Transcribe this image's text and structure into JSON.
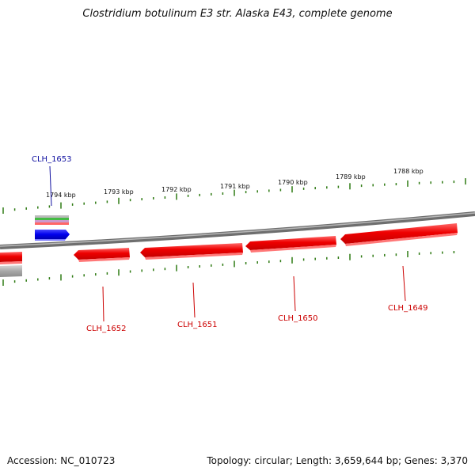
{
  "header": {
    "title": "Clostridium botulinum E3 str. Alaska E43, complete genome"
  },
  "footer": {
    "accession": "Accession: NC_010723",
    "summary": "Topology: circular; Length: 3,659,644 bp; Genes: 3,370"
  },
  "scale_labels": [
    "1794 kbp",
    "1793 kbp",
    "1792 kbp",
    "1791 kbp",
    "1790 kbp",
    "1789 kbp",
    "1788 kbp"
  ],
  "genes": [
    {
      "id": "CLH_1653",
      "strand": "forward",
      "color": "#0000ee"
    },
    {
      "id": "CLH_1652",
      "strand": "reverse",
      "color": "#ee0000"
    },
    {
      "id": "CLH_1651",
      "strand": "reverse",
      "color": "#ee0000"
    },
    {
      "id": "CLH_1650",
      "strand": "reverse",
      "color": "#ee0000"
    },
    {
      "id": "CLH_1649",
      "strand": "reverse",
      "color": "#ee0000"
    }
  ],
  "colors": {
    "backbone": "#888888",
    "gc_ticks": "#2d7a12",
    "forward_gene": "#0000ee",
    "reverse_gene": "#ee0000",
    "label_forward": "#1010a0",
    "label_reverse": "#cc0000"
  }
}
